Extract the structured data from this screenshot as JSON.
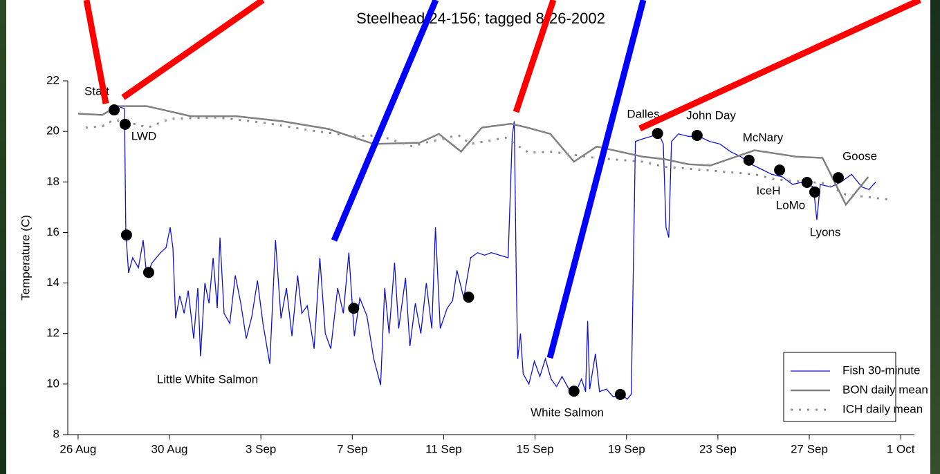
{
  "chart_data": {
    "type": "line",
    "title": "Steelhead 24-156; tagged 8-26-2002",
    "y_label": "Temperature (C)",
    "xlim": [
      -0.45,
      36.6
    ],
    "xticks": [
      {
        "value": 0,
        "label": "26 Aug"
      },
      {
        "value": 4,
        "label": "30 Aug"
      },
      {
        "value": 8,
        "label": "3 Sep"
      },
      {
        "value": 12,
        "label": "7 Sep"
      },
      {
        "value": 16,
        "label": "11 Sep"
      },
      {
        "value": 20,
        "label": "15 Sep"
      },
      {
        "value": 24,
        "label": "19 Sep"
      },
      {
        "value": 28,
        "label": "23 Sep"
      },
      {
        "value": 32,
        "label": "27 Sep"
      },
      {
        "value": 36,
        "label": "1 Oct"
      }
    ],
    "ylim": [
      8,
      22
    ],
    "yticks": [
      8,
      10,
      12,
      14,
      16,
      18,
      20,
      22
    ],
    "series": [
      {
        "name": "Fish 30-minute",
        "color": "#1010d0",
        "style": "solid",
        "x": [
          1.73,
          2.03,
          2.09,
          2.21,
          2.39,
          2.64,
          2.85,
          3.0,
          3.24,
          3.61,
          3.85,
          4.03,
          4.15,
          4.27,
          4.45,
          4.64,
          4.82,
          5.06,
          5.24,
          5.36,
          5.55,
          5.73,
          5.91,
          6.09,
          6.21,
          6.39,
          6.64,
          6.88,
          7.12,
          7.36,
          7.61,
          7.85,
          8.09,
          8.39,
          8.64,
          8.88,
          9.12,
          9.36,
          9.61,
          9.79,
          10.03,
          10.33,
          10.58,
          10.82,
          11.06,
          11.36,
          11.61,
          11.85,
          12.09,
          12.33,
          12.64,
          12.94,
          13.24,
          13.42,
          13.61,
          13.85,
          14.03,
          14.33,
          14.52,
          14.76,
          15.0,
          15.24,
          15.48,
          15.64,
          15.85,
          16.15,
          16.39,
          16.58,
          16.88,
          17.18,
          17.48,
          17.79,
          18.09,
          18.45,
          18.82,
          19.0,
          19.09,
          19.18,
          19.24,
          19.36,
          19.48,
          19.73,
          19.97,
          20.21,
          20.45,
          20.7,
          20.94,
          21.18,
          21.48,
          21.79,
          22.03,
          22.21,
          22.3,
          22.39,
          22.64,
          22.82,
          23.12,
          23.42,
          23.79,
          24.03,
          24.21,
          24.39,
          24.7,
          25.06,
          25.42,
          25.61,
          25.73,
          25.85,
          25.97,
          26.27,
          26.73,
          27.18,
          27.64,
          28.09,
          28.55,
          29.0,
          29.45,
          29.91,
          30.36,
          30.82,
          31.27,
          31.73,
          32.18,
          32.33,
          32.48,
          32.94,
          33.39,
          33.85,
          34.3,
          34.61,
          34.91
        ],
        "values": [
          21.0,
          20.9,
          16.0,
          14.4,
          15.0,
          14.6,
          15.7,
          14.3,
          14.8,
          15.2,
          15.4,
          16.2,
          15.4,
          12.6,
          13.5,
          12.8,
          13.7,
          11.8,
          13.8,
          11.1,
          14.0,
          13.2,
          15.0,
          13.0,
          15.8,
          12.8,
          12.4,
          14.3,
          13.2,
          11.8,
          12.7,
          14.1,
          12.4,
          10.8,
          15.7,
          12.6,
          13.8,
          11.9,
          14.3,
          12.8,
          13.1,
          11.4,
          15.0,
          12.0,
          11.4,
          13.8,
          12.8,
          15.2,
          11.9,
          13.4,
          12.7,
          11.0,
          9.96,
          13.8,
          12.0,
          14.8,
          12.2,
          14.2,
          11.5,
          13.2,
          12.0,
          14.0,
          12.2,
          16.2,
          12.2,
          13.0,
          13.3,
          14.5,
          13.4,
          15.0,
          15.2,
          15.1,
          15.2,
          15.1,
          15.0,
          19.8,
          20.4,
          14.0,
          11.0,
          12.0,
          10.4,
          10.0,
          10.9,
          10.3,
          11.0,
          10.2,
          9.9,
          10.3,
          9.8,
          9.7,
          10.2,
          9.7,
          12.5,
          9.8,
          11.2,
          9.7,
          9.8,
          9.5,
          9.6,
          9.4,
          9.6,
          19.6,
          19.7,
          19.8,
          19.9,
          19.5,
          16.2,
          15.8,
          19.6,
          19.9,
          19.8,
          19.8,
          19.6,
          19.5,
          19.2,
          19.0,
          18.7,
          18.5,
          18.3,
          18.2,
          17.9,
          18.0,
          17.8,
          16.5,
          17.9,
          17.8,
          18.0,
          18.3,
          17.8,
          17.7,
          18.0
        ]
      },
      {
        "name": "BON daily mean",
        "color": "#808080",
        "style": "solid",
        "x": [
          0,
          1.06,
          1.73,
          3.0,
          4.94,
          6.94,
          8.94,
          10.94,
          12.94,
          14.94,
          15.79,
          16.76,
          17.67,
          18.94,
          19.67,
          20.67,
          21.7,
          22.7,
          24.7,
          25.67,
          26.7,
          27.67,
          29.6,
          31.42,
          32.58,
          33.6,
          34.58
        ],
        "values": [
          20.7,
          20.65,
          21.0,
          21.0,
          20.6,
          20.6,
          20.4,
          20.1,
          19.5,
          19.55,
          19.9,
          19.2,
          20.15,
          20.3,
          20.15,
          19.9,
          18.8,
          19.4,
          19.0,
          18.9,
          18.7,
          18.65,
          19.25,
          19.0,
          18.95,
          17.1,
          18.2
        ]
      },
      {
        "name": "ICH daily mean",
        "color": "#909090",
        "style": "dotted",
        "x": [
          0.33,
          1.06,
          1.55,
          2.03,
          3.06,
          4.03,
          6.09,
          8.09,
          10.09,
          12.15,
          13.12,
          14.64,
          15.18,
          16.64,
          17.18,
          18.7,
          19.73,
          20.7,
          22.64,
          24.7,
          25.67,
          27.67,
          29.6,
          30.52,
          32.64,
          33.6,
          35.5
        ],
        "values": [
          20.15,
          20.2,
          20.45,
          20.4,
          20.15,
          20.5,
          20.55,
          20.35,
          20.05,
          19.8,
          19.85,
          19.4,
          19.55,
          19.85,
          19.5,
          19.75,
          19.15,
          19.2,
          18.95,
          18.8,
          18.6,
          18.45,
          18.3,
          18.1,
          17.95,
          17.5,
          17.3
        ]
      }
    ],
    "points": {
      "color": "#000000",
      "x": [
        1.58,
        2.06,
        2.12,
        3.09,
        12.06,
        17.09,
        21.7,
        23.73,
        25.36,
        27.09,
        29.36,
        30.7,
        31.9,
        32.24,
        33.27
      ],
      "values": [
        20.85,
        20.28,
        15.9,
        14.42,
        13.0,
        13.44,
        9.72,
        9.59,
        19.92,
        19.84,
        18.86,
        18.47,
        17.98,
        17.6,
        18.17
      ]
    },
    "annotations": [
      "Start",
      "LWD",
      "Little White Salmon",
      "White Salmon",
      "Dalles",
      "John Day",
      "McNary",
      "Goose",
      "IceH",
      "LoMo",
      "Lyons"
    ],
    "legend": "lower right"
  }
}
